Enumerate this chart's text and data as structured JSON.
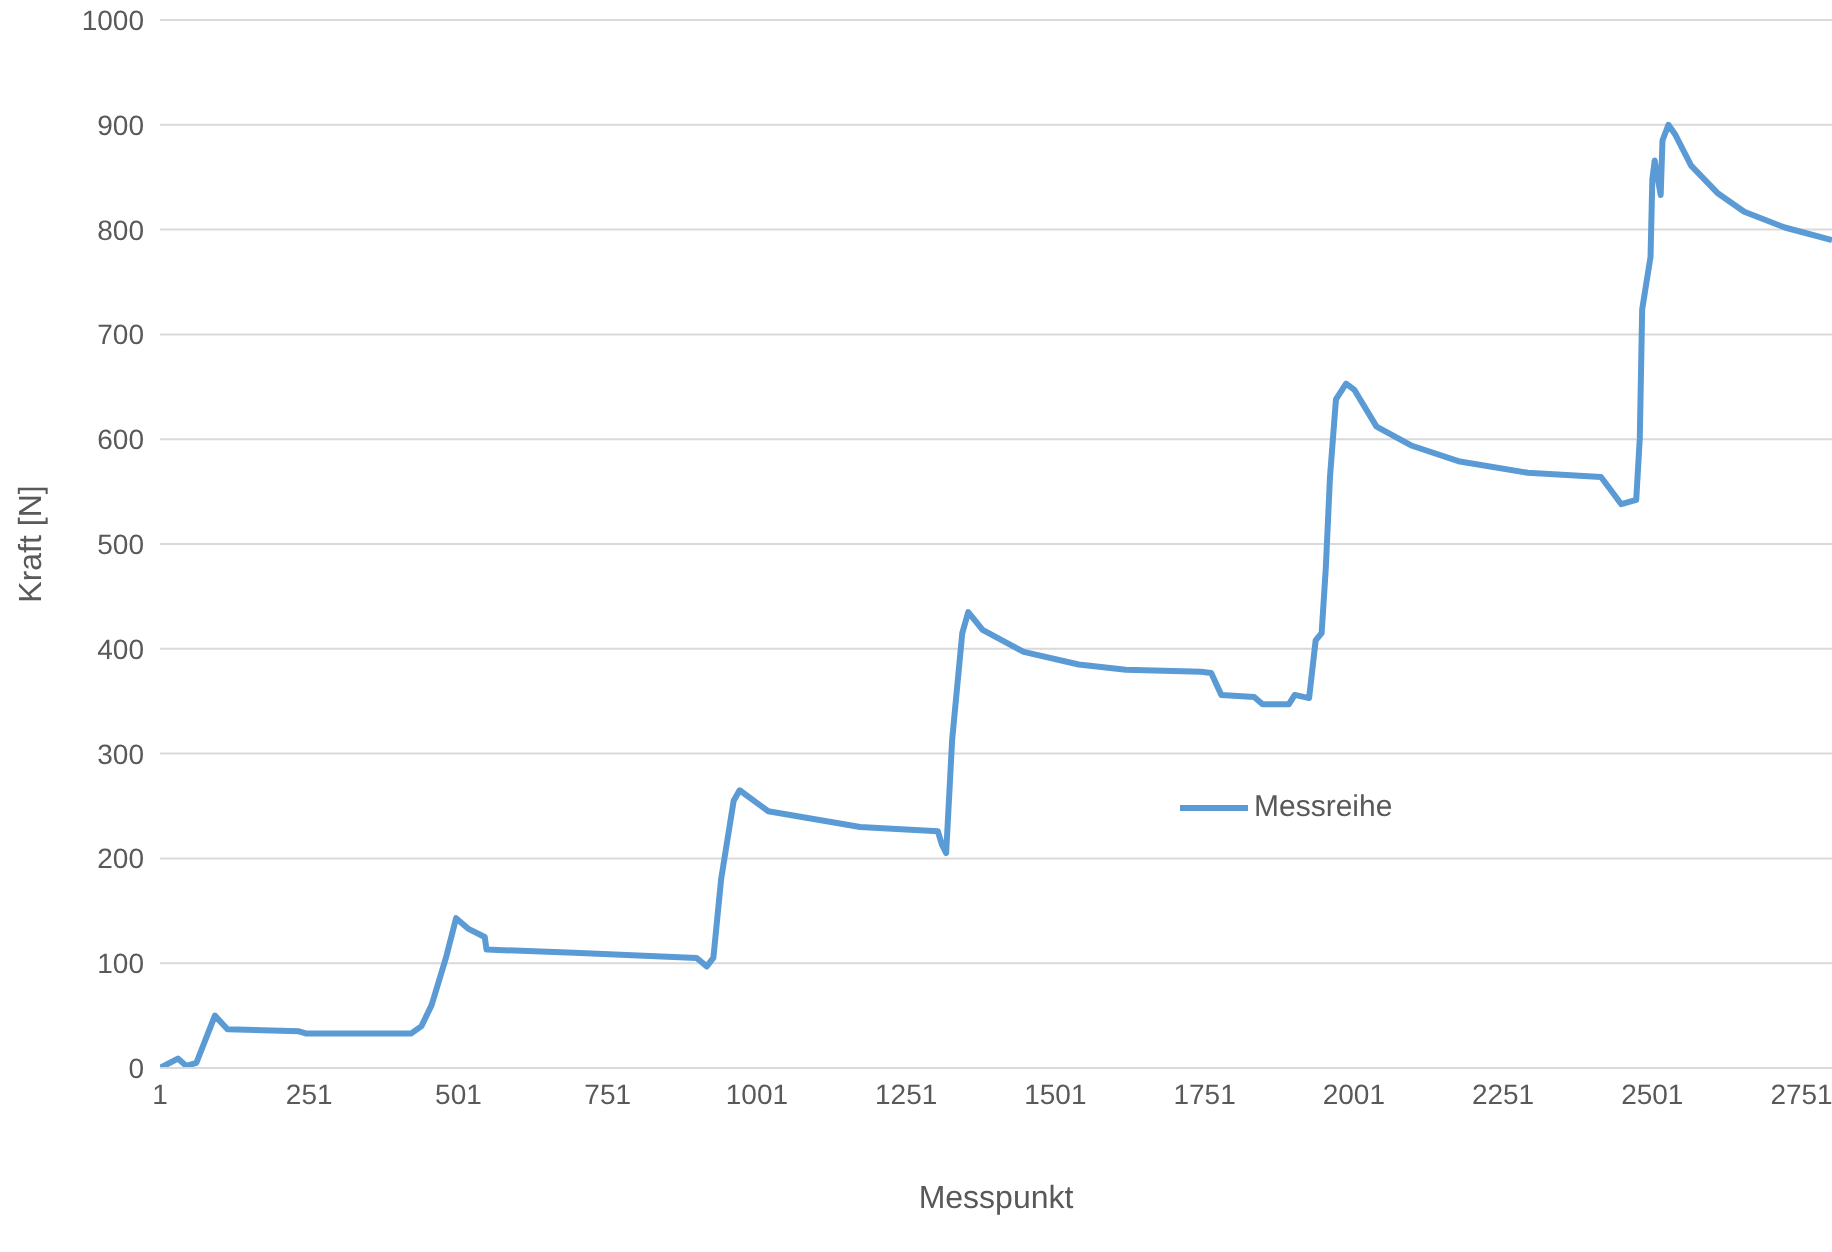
{
  "chart_data": {
    "type": "line",
    "xlabel": "Messpunkt",
    "ylabel": "Kraft [N]",
    "xlim": [
      1,
      2802
    ],
    "xticks": [
      1,
      251,
      501,
      751,
      1001,
      1251,
      1501,
      1751,
      2001,
      2251,
      2501,
      2751
    ],
    "ylim": [
      0,
      1000
    ],
    "yticks": [
      0,
      100,
      200,
      300,
      400,
      500,
      600,
      700,
      800,
      900,
      1000
    ],
    "grid": "y",
    "legend": "right",
    "marker": "none",
    "line_style": "solid",
    "series": [
      {
        "name": "Messreihe",
        "color": "#5b9bd5",
        "x": [
          1,
          31,
          45,
          62,
          93,
          114,
          234,
          245,
          422,
          439,
          456,
          480,
          497,
          517,
          545,
          548,
          695,
          900,
          917,
          928,
          941,
          962,
          972,
          1020,
          1174,
          1304,
          1311,
          1318,
          1328,
          1345,
          1355,
          1379,
          1448,
          1540,
          1619,
          1745,
          1762,
          1779,
          1834,
          1848,
          1892,
          1902,
          1926,
          1937,
          1947,
          1954,
          1961,
          1971,
          1988,
          2002,
          2039,
          2097,
          2176,
          2292,
          2415,
          2432,
          2449,
          2474,
          2480,
          2484,
          2498,
          2501,
          2505,
          2515,
          2518,
          2528,
          2539,
          2566,
          2610,
          2655,
          2723,
          2802
        ],
        "values": [
          0,
          9,
          2,
          5,
          50,
          37,
          35,
          33,
          33,
          40,
          60,
          105,
          143,
          133,
          125,
          113,
          110,
          105,
          97,
          105,
          180,
          255,
          265,
          245,
          230,
          226,
          213,
          205,
          313,
          415,
          435,
          418,
          397,
          385,
          380,
          378,
          377,
          356,
          354,
          347,
          347,
          356,
          353,
          408,
          415,
          477,
          564,
          638,
          653,
          647,
          612,
          594,
          579,
          568,
          564,
          551,
          538,
          542,
          601,
          724,
          774,
          848,
          866,
          833,
          885,
          900,
          891,
          861,
          835,
          817,
          802,
          790
        ]
      }
    ]
  }
}
